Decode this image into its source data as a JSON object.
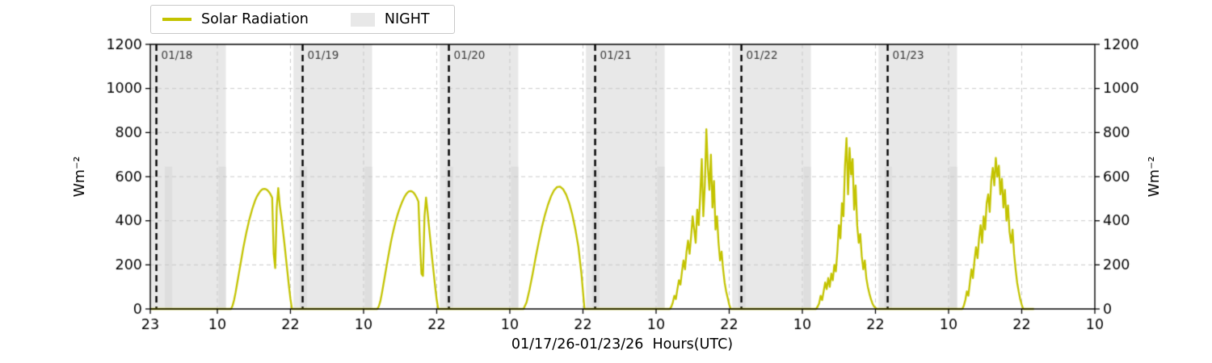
{
  "legend": {
    "items": [
      {
        "label": "Solar Radiation",
        "swatch": "line"
      },
      {
        "label": "NIGHT",
        "swatch": "patch"
      }
    ]
  },
  "axes": {
    "xlabel": "01/17/26-01/23/26  Hours(UTC)",
    "ylabel_left": "Wm⁻²",
    "ylabel_right": "Wm⁻²"
  },
  "chart_data": {
    "type": "line",
    "title": "",
    "xlim": [
      0,
      155
    ],
    "ylim": [
      0,
      1200
    ],
    "y_ticks": [
      0,
      200,
      400,
      600,
      800,
      1000,
      1200
    ],
    "x_ticks": [
      {
        "h": 0,
        "label": "23"
      },
      {
        "h": 11,
        "label": "10"
      },
      {
        "h": 23,
        "label": "22"
      },
      {
        "h": 35,
        "label": "10"
      },
      {
        "h": 47,
        "label": "22"
      },
      {
        "h": 59,
        "label": "10"
      },
      {
        "h": 71,
        "label": "22"
      },
      {
        "h": 83,
        "label": "10"
      },
      {
        "h": 95,
        "label": "22"
      },
      {
        "h": 107,
        "label": "10"
      },
      {
        "h": 119,
        "label": "22"
      },
      {
        "h": 131,
        "label": "10"
      },
      {
        "h": 143,
        "label": "22"
      },
      {
        "h": 155,
        "label": "10"
      }
    ],
    "day_boundaries": [
      {
        "h": 1,
        "label": "01/18"
      },
      {
        "h": 25,
        "label": "01/19"
      },
      {
        "h": 49,
        "label": "01/20"
      },
      {
        "h": 73,
        "label": "01/21"
      },
      {
        "h": 97,
        "label": "01/22"
      },
      {
        "h": 121,
        "label": "01/23"
      }
    ],
    "night_bands": [
      [
        0,
        12.4
      ],
      [
        23.5,
        36.4
      ],
      [
        47.5,
        60.4
      ],
      [
        71.5,
        84.4
      ],
      [
        95.5,
        108.4
      ],
      [
        119.5,
        132.4
      ]
    ],
    "night_edge_bars": {
      "value": 645,
      "ranges": [
        [
          2.4,
          3.6
        ],
        [
          11.2,
          12.4
        ],
        [
          24.5,
          25.7
        ],
        [
          35.2,
          36.4
        ],
        [
          48.5,
          49.7
        ],
        [
          59.2,
          60.4
        ],
        [
          72.5,
          73.7
        ],
        [
          83.2,
          84.4
        ],
        [
          96.5,
          97.7
        ],
        [
          107.2,
          108.4
        ],
        [
          120.5,
          121.7
        ],
        [
          131.2,
          132.4
        ]
      ]
    },
    "series": {
      "name": "Solar Radiation",
      "baseline_start_h": 0,
      "baseline_end_h": 145,
      "days": [
        {
          "label": "01/18",
          "start_h": 13.25,
          "step_h": 0.25,
          "values": [
            0,
            15,
            40,
            75,
            115,
            155,
            195,
            235,
            275,
            310,
            345,
            375,
            405,
            430,
            455,
            475,
            495,
            510,
            522,
            532,
            540,
            544,
            545,
            543,
            538,
            530,
            519,
            505,
            250,
            185,
            460,
            548,
            470,
            420,
            360,
            300,
            235,
            170,
            105,
            45,
            0
          ]
        },
        {
          "label": "01/19",
          "start_h": 37.25,
          "step_h": 0.25,
          "values": [
            0,
            12,
            35,
            70,
            110,
            150,
            190,
            230,
            268,
            305,
            338,
            368,
            396,
            420,
            442,
            462,
            480,
            496,
            510,
            521,
            529,
            534,
            535,
            532,
            526,
            516,
            503,
            487,
            300,
            160,
            150,
            420,
            505,
            440,
            370,
            300,
            230,
            165,
            100,
            42,
            0
          ]
        },
        {
          "label": "01/20",
          "start_h": 61.25,
          "step_h": 0.5,
          "values": [
            0,
            30,
            90,
            160,
            235,
            305,
            370,
            425,
            472,
            510,
            538,
            553,
            555,
            543,
            518,
            480,
            428,
            362,
            282,
            160,
            0
          ]
        },
        {
          "label": "01/21",
          "start_h": 85.25,
          "step_h": 0.25,
          "values": [
            0,
            10,
            30,
            60,
            45,
            90,
            130,
            110,
            170,
            220,
            180,
            260,
            310,
            250,
            330,
            420,
            360,
            300,
            450,
            380,
            520,
            680,
            420,
            560,
            815,
            640,
            540,
            700,
            460,
            580,
            360,
            420,
            300,
            220,
            260,
            180,
            120,
            80,
            50,
            20,
            0
          ]
        },
        {
          "label": "01/22",
          "start_h": 109.25,
          "step_h": 0.25,
          "values": [
            0,
            10,
            25,
            60,
            40,
            80,
            120,
            90,
            140,
            100,
            160,
            130,
            200,
            170,
            260,
            380,
            320,
            480,
            420,
            650,
            775,
            520,
            730,
            610,
            680,
            450,
            560,
            380,
            300,
            340,
            240,
            180,
            220,
            140,
            100,
            70,
            45,
            25,
            12,
            5,
            0
          ]
        },
        {
          "label": "01/23",
          "start_h": 133.25,
          "step_h": 0.25,
          "values": [
            0,
            15,
            40,
            80,
            60,
            120,
            180,
            140,
            220,
            280,
            230,
            320,
            380,
            300,
            420,
            360,
            480,
            520,
            440,
            580,
            640,
            560,
            685,
            600,
            650,
            520,
            590,
            460,
            540,
            400,
            470,
            350,
            300,
            360,
            250,
            180,
            120,
            80,
            45,
            20,
            0
          ]
        }
      ]
    },
    "colors": {
      "line": "#c3c300",
      "night": "#e8e8e8",
      "night_edge": "#dedede",
      "grid": "#c9c9c9",
      "boundary": "#000000",
      "day_label": "#3c3c3c",
      "axis": "#000000"
    }
  }
}
